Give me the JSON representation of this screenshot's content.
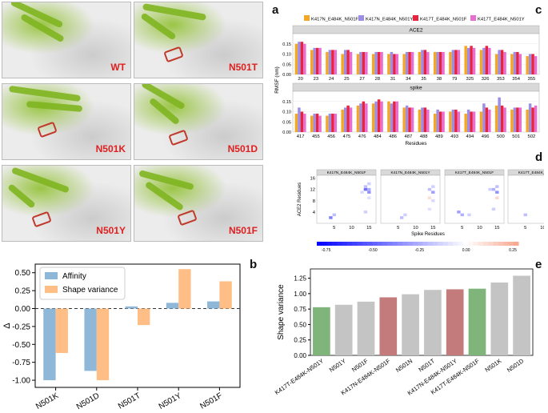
{
  "panel_letters": {
    "a": "a",
    "b": "b",
    "c": "c",
    "d": "d",
    "e": "e"
  },
  "structures": [
    {
      "label": "WT"
    },
    {
      "label": "N501T"
    },
    {
      "label": "N501K"
    },
    {
      "label": "N501D"
    },
    {
      "label": "N501Y"
    },
    {
      "label": "N501F"
    }
  ],
  "colors": {
    "affinity": "#8fb8d8",
    "shape_variance": "#ffbe85",
    "c_orange": "#f5a623",
    "c_purple": "#9a8ee6",
    "c_red": "#e8233d",
    "c_pink": "#e86fd2",
    "e_gray": "#c4c4c4",
    "e_red": "#c47b7b",
    "e_green": "#7fb57a",
    "heat_neg": "#0000ff",
    "heat_pos": "#f7a58c"
  },
  "chart_data": [
    {
      "id": "b",
      "type": "bar",
      "categories": [
        "N501K",
        "N501D",
        "N501T",
        "N501Y",
        "N501F"
      ],
      "series": [
        {
          "name": "Affinity",
          "values": [
            -1.0,
            -0.87,
            0.03,
            0.08,
            0.1
          ]
        },
        {
          "name": "Shape variance",
          "values": [
            -0.62,
            -1.0,
            -0.23,
            0.55,
            0.38
          ]
        }
      ],
      "ylabel": "Δ",
      "ylim": [
        -1.1,
        0.62
      ],
      "yticks": [
        -1.0,
        -0.75,
        -0.5,
        -0.25,
        0.0,
        0.25,
        0.5
      ],
      "ytick_labels": [
        "-1.00",
        "-0.75",
        "-0.50",
        "-0.25",
        "0.00",
        "0.25",
        "0.50"
      ],
      "legend_position": "top-left"
    },
    {
      "id": "c",
      "type": "bar",
      "series_names": [
        "K417N_E484K_N501F",
        "K417N_E484K_N501Y",
        "K417T_E484K_N501F",
        "K417T_E484K_N501Y"
      ],
      "ylabel": "RMSF (nm)",
      "xlabel": "Residues",
      "ylim": [
        0,
        0.2
      ],
      "yticks": [
        0,
        0.05,
        0.1,
        0.15
      ],
      "ytick_labels": [
        "0.00",
        "0.05",
        "0.10",
        "0.15"
      ],
      "panels": [
        {
          "title": "ACE2",
          "categories": [
            "20",
            "23",
            "24",
            "25",
            "27",
            "28",
            "31",
            "34",
            "35",
            "38",
            "79",
            "325",
            "326",
            "353",
            "354",
            "355"
          ],
          "values": [
            [
              0.15,
              0.12,
              0.11,
              0.1,
              0.1,
              0.1,
              0.1,
              0.1,
              0.11,
              0.11,
              0.11,
              0.14,
              0.12,
              0.1,
              0.1,
              0.09
            ],
            [
              0.16,
              0.13,
              0.12,
              0.12,
              0.11,
              0.11,
              0.11,
              0.11,
              0.12,
              0.11,
              0.12,
              0.13,
              0.13,
              0.12,
              0.11,
              0.1
            ],
            [
              0.16,
              0.13,
              0.12,
              0.12,
              0.11,
              0.11,
              0.1,
              0.11,
              0.12,
              0.11,
              0.12,
              0.14,
              0.14,
              0.12,
              0.11,
              0.1
            ],
            [
              0.15,
              0.13,
              0.12,
              0.11,
              0.11,
              0.11,
              0.1,
              0.11,
              0.11,
              0.11,
              0.12,
              0.13,
              0.13,
              0.11,
              0.1,
              0.09
            ]
          ]
        },
        {
          "title": "spike",
          "categories": [
            "417",
            "455",
            "456",
            "475",
            "476",
            "484",
            "486",
            "487",
            "488",
            "489",
            "493",
            "494",
            "496",
            "500",
            "501",
            "502"
          ],
          "values": [
            [
              0.09,
              0.08,
              0.08,
              0.11,
              0.13,
              0.14,
              0.15,
              0.12,
              0.11,
              0.09,
              0.1,
              0.09,
              0.1,
              0.13,
              0.11,
              0.11
            ],
            [
              0.12,
              0.09,
              0.09,
              0.12,
              0.14,
              0.15,
              0.14,
              0.13,
              0.12,
              0.11,
              0.11,
              0.11,
              0.14,
              0.17,
              0.12,
              0.14
            ],
            [
              0.1,
              0.09,
              0.09,
              0.13,
              0.15,
              0.16,
              0.15,
              0.12,
              0.12,
              0.1,
              0.11,
              0.1,
              0.12,
              0.13,
              0.12,
              0.12
            ],
            [
              0.09,
              0.08,
              0.09,
              0.12,
              0.14,
              0.15,
              0.15,
              0.12,
              0.11,
              0.1,
              0.1,
              0.1,
              0.11,
              0.12,
              0.12,
              0.13
            ]
          ]
        }
      ],
      "legend_position": "top"
    },
    {
      "id": "d",
      "type": "heatmap",
      "titles": [
        "K417N_E484K_N501F",
        "K417N_E484K_N501Y",
        "K417T_E484K_N501F",
        "K417T_E484K_N501Y"
      ],
      "xlabel": "Spike Residues",
      "ylabel": "ACE2 Residues",
      "xlim": [
        0,
        17
      ],
      "ylim": [
        0,
        17
      ],
      "xticks": [
        5,
        10,
        15
      ],
      "yticks": [
        4,
        8,
        12,
        16
      ],
      "colorbar": {
        "min": -0.8,
        "max": 0.28,
        "ticks": [
          -0.75,
          -0.5,
          -0.25,
          0.0,
          0.25
        ],
        "tick_labels": [
          "-0.75",
          "-0.50",
          "-0.25",
          "0.00",
          "0.25"
        ]
      },
      "cells": [
        [
          [
            14,
            12,
            -0.45
          ],
          [
            15,
            11,
            -0.35
          ],
          [
            14,
            13,
            -0.2
          ],
          [
            15,
            14,
            -0.15
          ],
          [
            4,
            2,
            -0.4
          ],
          [
            5,
            3,
            -0.2
          ],
          [
            14,
            4,
            -0.15
          ],
          [
            15,
            9,
            -0.1
          ],
          [
            13,
            11,
            -0.12
          ],
          [
            15,
            12,
            -0.25
          ]
        ],
        [
          [
            15,
            11,
            -0.3
          ],
          [
            14,
            12,
            -0.2
          ],
          [
            15,
            13,
            -0.15
          ],
          [
            6,
            2,
            -0.2
          ],
          [
            7,
            3,
            -0.15
          ],
          [
            14,
            5,
            -0.1
          ],
          [
            15,
            8,
            -0.12
          ],
          [
            14,
            9,
            0.1
          ]
        ],
        [
          [
            15,
            11,
            -0.35
          ],
          [
            14,
            12,
            -0.25
          ],
          [
            15,
            13,
            -0.2
          ],
          [
            4,
            4,
            -0.3
          ],
          [
            5,
            3,
            -0.25
          ],
          [
            7,
            3,
            -0.15
          ],
          [
            14,
            5,
            -0.15
          ],
          [
            15,
            9,
            0.12
          ],
          [
            13,
            12,
            -0.15
          ]
        ],
        [
          [
            15,
            12,
            -0.75
          ],
          [
            14,
            12,
            -0.4
          ],
          [
            15,
            11,
            -0.3
          ],
          [
            16,
            12,
            -0.25
          ],
          [
            15,
            14,
            -0.2
          ],
          [
            14,
            13,
            -0.15
          ],
          [
            5,
            3,
            -0.2
          ],
          [
            14,
            5,
            -0.1
          ],
          [
            16,
            10,
            0.15
          ],
          [
            13,
            11,
            -0.12
          ]
        ]
      ]
    },
    {
      "id": "e",
      "type": "bar",
      "categories": [
        "K417T-E484K-N501Y",
        "N501Y",
        "N501F",
        "K417N-E484K-N501F",
        "N501N",
        "N501T",
        "K417N-E484K-N501Y",
        "K417T-E484K-N501F",
        "N501K",
        "N501D"
      ],
      "values": [
        0.78,
        0.82,
        0.87,
        0.94,
        0.99,
        1.06,
        1.07,
        1.08,
        1.18,
        1.29
      ],
      "bar_groups": [
        "green",
        "gray",
        "gray",
        "red",
        "gray",
        "gray",
        "red",
        "green",
        "gray",
        "gray"
      ],
      "ylabel": "Shape variance",
      "ylim": [
        0,
        1.4
      ],
      "yticks": [
        0,
        0.25,
        0.5,
        0.75,
        1.0,
        1.25
      ],
      "ytick_labels": [
        "0.00",
        "0.25",
        "0.50",
        "0.75",
        "1.00",
        "1.25"
      ]
    }
  ]
}
